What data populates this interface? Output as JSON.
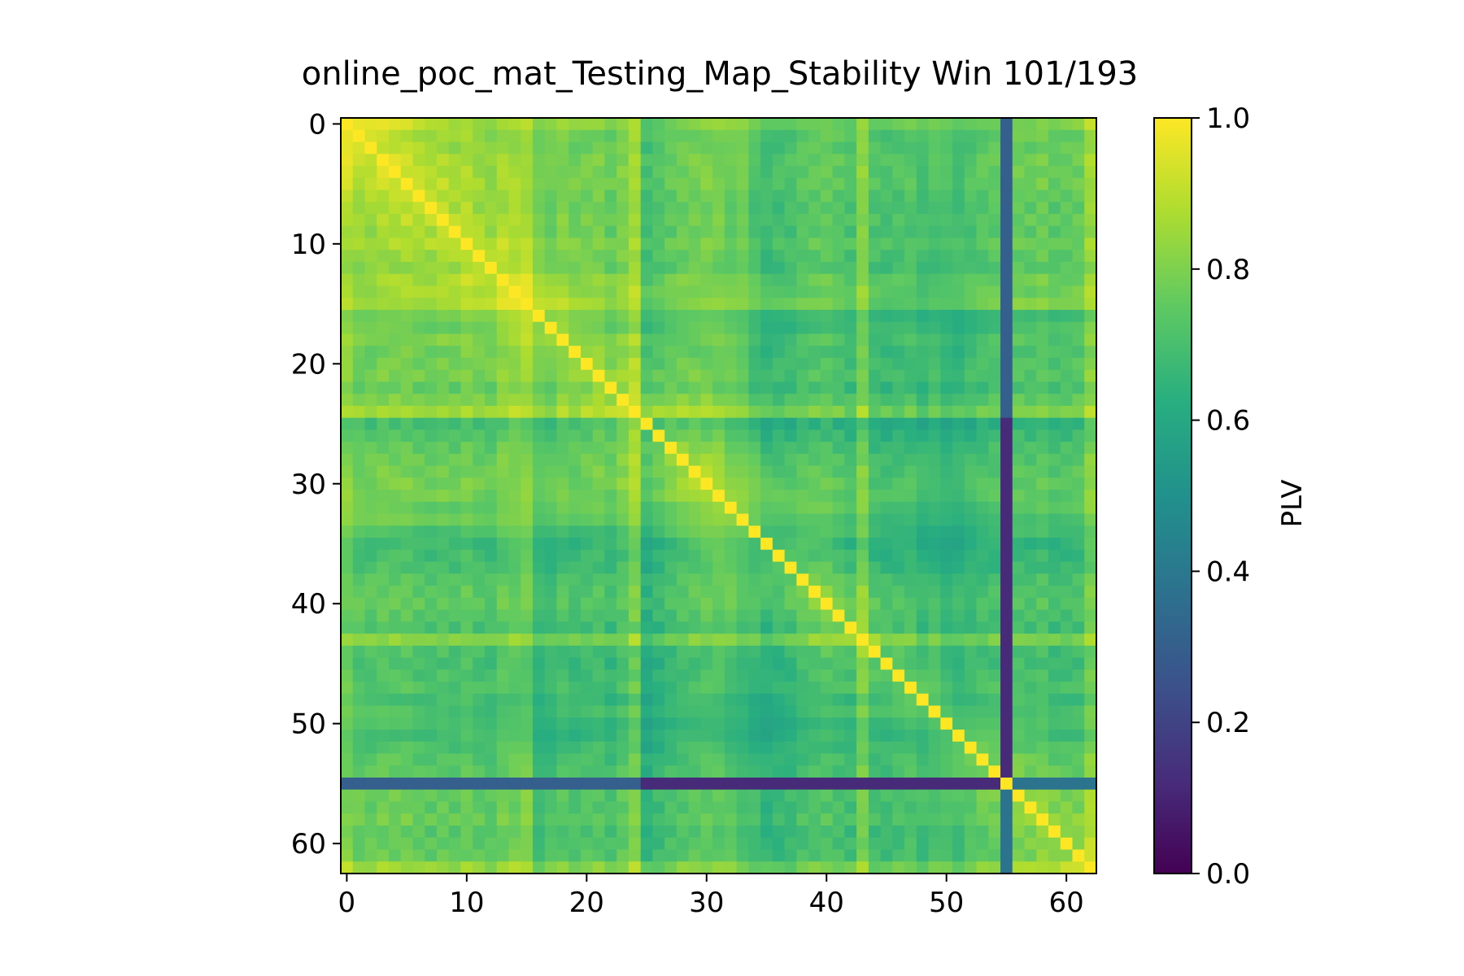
{
  "chart_data": {
    "type": "heatmap",
    "title": "online_poc_mat_Testing_Map_Stability Win 101/193",
    "xlabel": "",
    "ylabel": "",
    "size": 63,
    "x_ticks": [
      0,
      10,
      20,
      30,
      40,
      50,
      60
    ],
    "y_ticks": [
      0,
      10,
      20,
      30,
      40,
      50,
      60
    ],
    "tick_labels": [
      "0",
      "10",
      "20",
      "30",
      "40",
      "50",
      "60"
    ],
    "colormap": "viridis",
    "value_range": [
      0.0,
      1.0
    ],
    "colorbar": {
      "label": "PLV",
      "ticks": [
        0.0,
        0.2,
        0.4,
        0.6,
        0.8,
        1.0
      ],
      "tick_labels": [
        "0.0",
        "0.2",
        "0.4",
        "0.6",
        "0.8",
        "1.0"
      ]
    },
    "channel_profile": [
      0.92,
      0.84,
      0.83,
      0.86,
      0.85,
      0.86,
      0.82,
      0.8,
      0.83,
      0.8,
      0.85,
      0.8,
      0.78,
      0.86,
      0.87,
      0.9,
      0.7,
      0.72,
      0.78,
      0.74,
      0.76,
      0.78,
      0.72,
      0.8,
      0.92,
      0.6,
      0.66,
      0.72,
      0.76,
      0.78,
      0.8,
      0.8,
      0.76,
      0.74,
      0.66,
      0.6,
      0.62,
      0.64,
      0.7,
      0.72,
      0.74,
      0.7,
      0.66,
      0.86,
      0.66,
      0.64,
      0.66,
      0.68,
      0.62,
      0.66,
      0.64,
      0.62,
      0.66,
      0.7,
      0.72,
      0.15,
      0.76,
      0.74,
      0.78,
      0.72,
      0.74,
      0.76,
      0.92
    ],
    "weak_channel": 55,
    "weak_channel_values": {
      "with_channels_0_24": 0.3,
      "with_channels_25_54": 0.12,
      "with_channels_56_62": 0.38
    }
  }
}
